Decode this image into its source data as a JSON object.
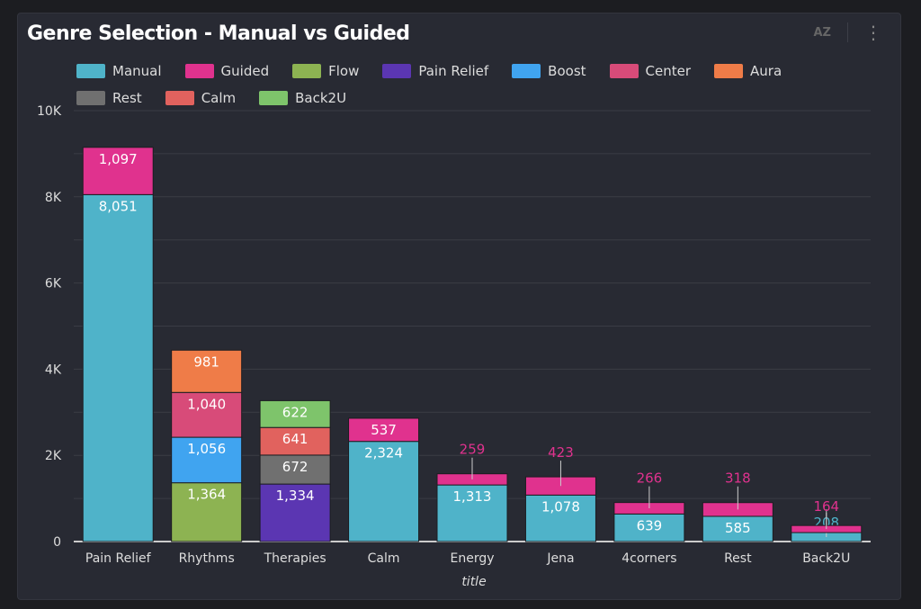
{
  "chart_data": {
    "type": "bar",
    "stacked": true,
    "title": "Genre Selection - Manual vs Guided",
    "xlabel": "title",
    "ylabel": "",
    "ylim": [
      0,
      10000
    ],
    "yticks": [
      0,
      2000,
      4000,
      6000,
      8000,
      10000
    ],
    "ytick_labels": [
      "0",
      "2K",
      "4K",
      "6K",
      "8K",
      "10K"
    ],
    "grid": true,
    "legend_position": "top",
    "categories": [
      "Pain Relief",
      "Rhythms",
      "Therapies",
      "Calm",
      "Energy",
      "Jena",
      "4corners",
      "Rest",
      "Back2U"
    ],
    "series": [
      {
        "name": "Manual",
        "color": "#4fb3c9",
        "values": [
          8051,
          null,
          null,
          2324,
          1313,
          1078,
          639,
          585,
          208
        ]
      },
      {
        "name": "Guided",
        "color": "#e0328e",
        "values": [
          1097,
          null,
          null,
          537,
          259,
          423,
          266,
          318,
          164
        ]
      },
      {
        "name": "Flow",
        "color": "#8db352",
        "values": [
          null,
          1364,
          null,
          null,
          null,
          null,
          null,
          null,
          null
        ]
      },
      {
        "name": "Pain Relief",
        "color": "#5b36b2",
        "values": [
          null,
          null,
          1334,
          null,
          null,
          null,
          null,
          null,
          null
        ]
      },
      {
        "name": "Boost",
        "color": "#40a4f0",
        "values": [
          null,
          1056,
          null,
          null,
          null,
          null,
          null,
          null,
          null
        ]
      },
      {
        "name": "Center",
        "color": "#d84b79",
        "values": [
          null,
          1040,
          null,
          null,
          null,
          null,
          null,
          null,
          null
        ]
      },
      {
        "name": "Aura",
        "color": "#ef7c48",
        "values": [
          null,
          981,
          null,
          null,
          null,
          null,
          null,
          null,
          null
        ]
      },
      {
        "name": "Rest",
        "color": "#707070",
        "values": [
          null,
          null,
          672,
          null,
          null,
          null,
          null,
          null,
          null
        ]
      },
      {
        "name": "Calm",
        "color": "#e1625e",
        "values": [
          null,
          null,
          641,
          null,
          null,
          null,
          null,
          null,
          null
        ]
      },
      {
        "name": "Back2U",
        "color": "#7ec46b",
        "values": [
          null,
          null,
          622,
          null,
          null,
          null,
          null,
          null,
          null
        ]
      }
    ],
    "stack_order": [
      [
        "Manual",
        "Guided"
      ],
      [
        "Flow",
        "Boost",
        "Center",
        "Aura"
      ],
      [
        "Pain Relief",
        "Rest",
        "Calm",
        "Back2U"
      ],
      [
        "Manual",
        "Guided"
      ],
      [
        "Manual",
        "Guided"
      ],
      [
        "Manual",
        "Guided"
      ],
      [
        "Manual",
        "Guided"
      ],
      [
        "Manual",
        "Guided"
      ],
      [
        "Manual",
        "Guided"
      ]
    ]
  },
  "toolbar": {
    "sort_icon": "sort-az-icon",
    "more_icon": "more-vertical-icon",
    "sort_label": "AZ",
    "more_label": "⋮"
  }
}
